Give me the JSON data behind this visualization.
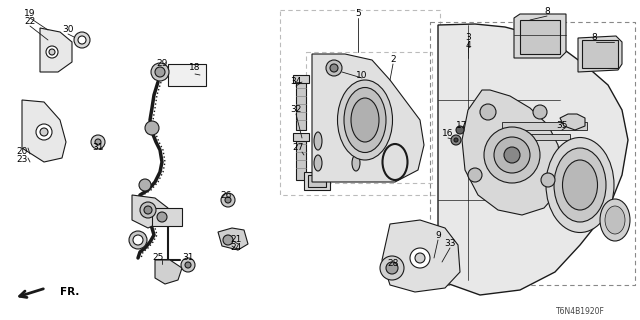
{
  "diagram_code": "T6N4B1920F",
  "bg_color": "#ffffff",
  "lc": "#1a1a1a",
  "gray": "#888888",
  "lgray": "#bbbbbb",
  "part_labels": [
    [
      "19",
      30,
      14
    ],
    [
      "22",
      30,
      22
    ],
    [
      "30",
      68,
      30
    ],
    [
      "18",
      195,
      68
    ],
    [
      "29",
      162,
      64
    ],
    [
      "20",
      22,
      152
    ],
    [
      "23",
      22,
      160
    ],
    [
      "31",
      98,
      148
    ],
    [
      "26",
      226,
      196
    ],
    [
      "25",
      158,
      258
    ],
    [
      "31",
      188,
      258
    ],
    [
      "21",
      236,
      240
    ],
    [
      "24",
      236,
      248
    ],
    [
      "5",
      358,
      14
    ],
    [
      "34",
      296,
      82
    ],
    [
      "32",
      296,
      110
    ],
    [
      "27",
      298,
      148
    ],
    [
      "2",
      393,
      60
    ],
    [
      "10",
      362,
      76
    ],
    [
      "9",
      438,
      236
    ],
    [
      "33",
      450,
      244
    ],
    [
      "28",
      393,
      264
    ],
    [
      "8",
      547,
      12
    ],
    [
      "8",
      594,
      38
    ],
    [
      "3",
      468,
      38
    ],
    [
      "4",
      468,
      46
    ],
    [
      "17",
      462,
      126
    ],
    [
      "16",
      448,
      134
    ],
    [
      "35",
      562,
      126
    ]
  ],
  "fr_label": [
    30,
    292,
    "FR."
  ]
}
